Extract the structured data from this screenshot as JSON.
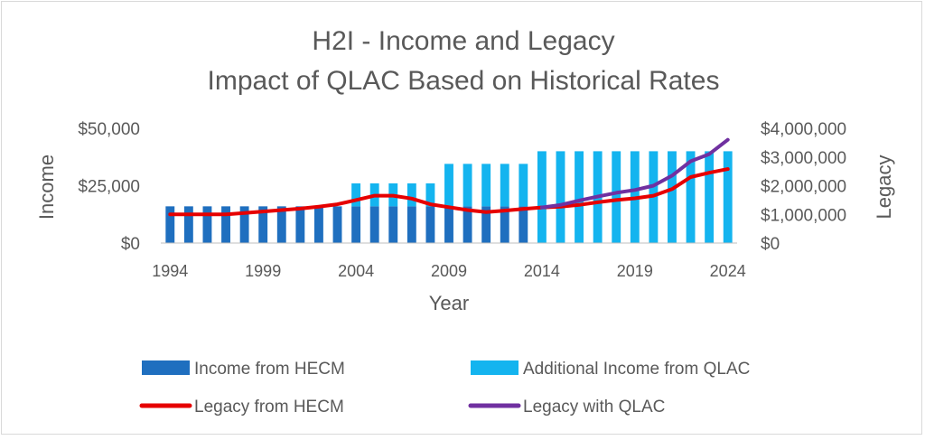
{
  "chart_data": {
    "type": "bar",
    "title": "H2I - Income and Legacy",
    "subtitle": "Impact of QLAC Based on Historical Rates",
    "xlabel": "Year",
    "ylabel": "Income",
    "y2label": "Legacy",
    "x": [
      1994,
      1995,
      1996,
      1997,
      1998,
      1999,
      2000,
      2001,
      2002,
      2003,
      2004,
      2005,
      2006,
      2007,
      2008,
      2009,
      2010,
      2011,
      2012,
      2013,
      2014,
      2015,
      2016,
      2017,
      2018,
      2019,
      2020,
      2021,
      2022,
      2023,
      2024
    ],
    "x_tick_labels": [
      "1994",
      "1999",
      "2004",
      "2009",
      "2014",
      "2019",
      "2024"
    ],
    "ylim": [
      0,
      50000
    ],
    "y_tick_labels": [
      "$0",
      "$25,000",
      "$50,000"
    ],
    "y2lim": [
      0,
      4000000
    ],
    "y2_tick_labels": [
      "$0",
      "$1,000,000",
      "$2,000,000",
      "$3,000,000",
      "$4,000,000"
    ],
    "grid": false,
    "legend_position": "bottom",
    "bar_series": [
      {
        "name": "Income from HECM",
        "color": "#1f6fbf",
        "values": [
          16000,
          16000,
          16000,
          16000,
          16000,
          16000,
          16000,
          16000,
          16000,
          16000,
          16000,
          16000,
          16000,
          16000,
          16000,
          16000,
          16000,
          16000,
          16000,
          16000,
          0,
          0,
          0,
          0,
          0,
          0,
          0,
          0,
          0,
          0,
          0
        ]
      },
      {
        "name": "Additional Income from QLAC",
        "color": "#14b4ef",
        "values": [
          0,
          0,
          0,
          0,
          0,
          0,
          0,
          0,
          0,
          0,
          10000,
          10000,
          10000,
          10000,
          10000,
          18500,
          18500,
          18500,
          18500,
          18500,
          40000,
          40000,
          40000,
          40000,
          40000,
          40000,
          40000,
          40000,
          40000,
          40000,
          40000
        ]
      }
    ],
    "line_series": [
      {
        "name": "Legacy from HECM",
        "color": "#e60000",
        "values": [
          1000000,
          1000000,
          1000000,
          1000000,
          1050000,
          1100000,
          1150000,
          1200000,
          1270000,
          1350000,
          1500000,
          1650000,
          1650000,
          1550000,
          1350000,
          1250000,
          1150000,
          1080000,
          1130000,
          1190000,
          1240000,
          1270000,
          1330000,
          1420000,
          1500000,
          1560000,
          1650000,
          1880000,
          2300000,
          2450000,
          2580000
        ]
      },
      {
        "name": "Legacy with  QLAC",
        "color": "#7030a0",
        "values": [
          null,
          null,
          null,
          null,
          null,
          null,
          null,
          null,
          null,
          null,
          null,
          null,
          null,
          null,
          null,
          null,
          null,
          null,
          null,
          null,
          1240000,
          1330000,
          1480000,
          1620000,
          1750000,
          1850000,
          2000000,
          2350000,
          2850000,
          3100000,
          3600000
        ]
      }
    ]
  }
}
